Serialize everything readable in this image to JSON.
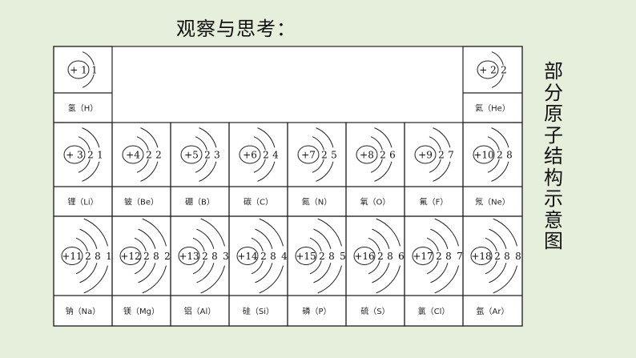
{
  "title": "观察与思考：",
  "side_label": "部分原子结构示意图",
  "colors": {
    "background": "#e6efdc",
    "table_bg": "#ffffff",
    "line": "#222222"
  },
  "atoms": [
    {
      "row": 0,
      "col": 0,
      "nucleus": "+ 1",
      "shells": [
        1
      ],
      "label": "氢（H）"
    },
    {
      "row": 0,
      "col": 7,
      "nucleus": "+ 2",
      "shells": [
        2
      ],
      "label": "氦（He）"
    },
    {
      "row": 1,
      "col": 0,
      "nucleus": "+ 3",
      "shells": [
        2,
        1
      ],
      "label": "锂（Li）"
    },
    {
      "row": 1,
      "col": 1,
      "nucleus": "+4",
      "shells": [
        2,
        2
      ],
      "label": "铍（Be）"
    },
    {
      "row": 1,
      "col": 2,
      "nucleus": "+5",
      "shells": [
        2,
        3
      ],
      "label": "硼（B）"
    },
    {
      "row": 1,
      "col": 3,
      "nucleus": "+6",
      "shells": [
        2,
        4
      ],
      "label": "碳（C）"
    },
    {
      "row": 1,
      "col": 4,
      "nucleus": "+7",
      "shells": [
        2,
        5
      ],
      "label": "氮（N）"
    },
    {
      "row": 1,
      "col": 5,
      "nucleus": "+8",
      "shells": [
        2,
        6
      ],
      "label": "氧（O）"
    },
    {
      "row": 1,
      "col": 6,
      "nucleus": "+9",
      "shells": [
        2,
        7
      ],
      "label": "氟（F）"
    },
    {
      "row": 1,
      "col": 7,
      "nucleus": "+10",
      "shells": [
        2,
        8
      ],
      "label": "氖（Ne）"
    },
    {
      "row": 2,
      "col": 0,
      "nucleus": "+11",
      "shells": [
        2,
        8,
        1
      ],
      "label": "钠（Na）"
    },
    {
      "row": 2,
      "col": 1,
      "nucleus": "+12",
      "shells": [
        2,
        8,
        2
      ],
      "label": "镁（Mg）"
    },
    {
      "row": 2,
      "col": 2,
      "nucleus": "+13",
      "shells": [
        2,
        8,
        3
      ],
      "label": "铝（Al）"
    },
    {
      "row": 2,
      "col": 3,
      "nucleus": "+14",
      "shells": [
        2,
        8,
        4
      ],
      "label": "硅（Si）"
    },
    {
      "row": 2,
      "col": 4,
      "nucleus": "+15",
      "shells": [
        2,
        8,
        5
      ],
      "label": "磷（P）"
    },
    {
      "row": 2,
      "col": 5,
      "nucleus": "+16",
      "shells": [
        2,
        8,
        6
      ],
      "label": "硫（S）"
    },
    {
      "row": 2,
      "col": 6,
      "nucleus": "+17",
      "shells": [
        2,
        8,
        7
      ],
      "label": "氯（Cl）"
    },
    {
      "row": 2,
      "col": 7,
      "nucleus": "+18",
      "shells": [
        2,
        8,
        8
      ],
      "label": "氩（Ar）"
    }
  ]
}
